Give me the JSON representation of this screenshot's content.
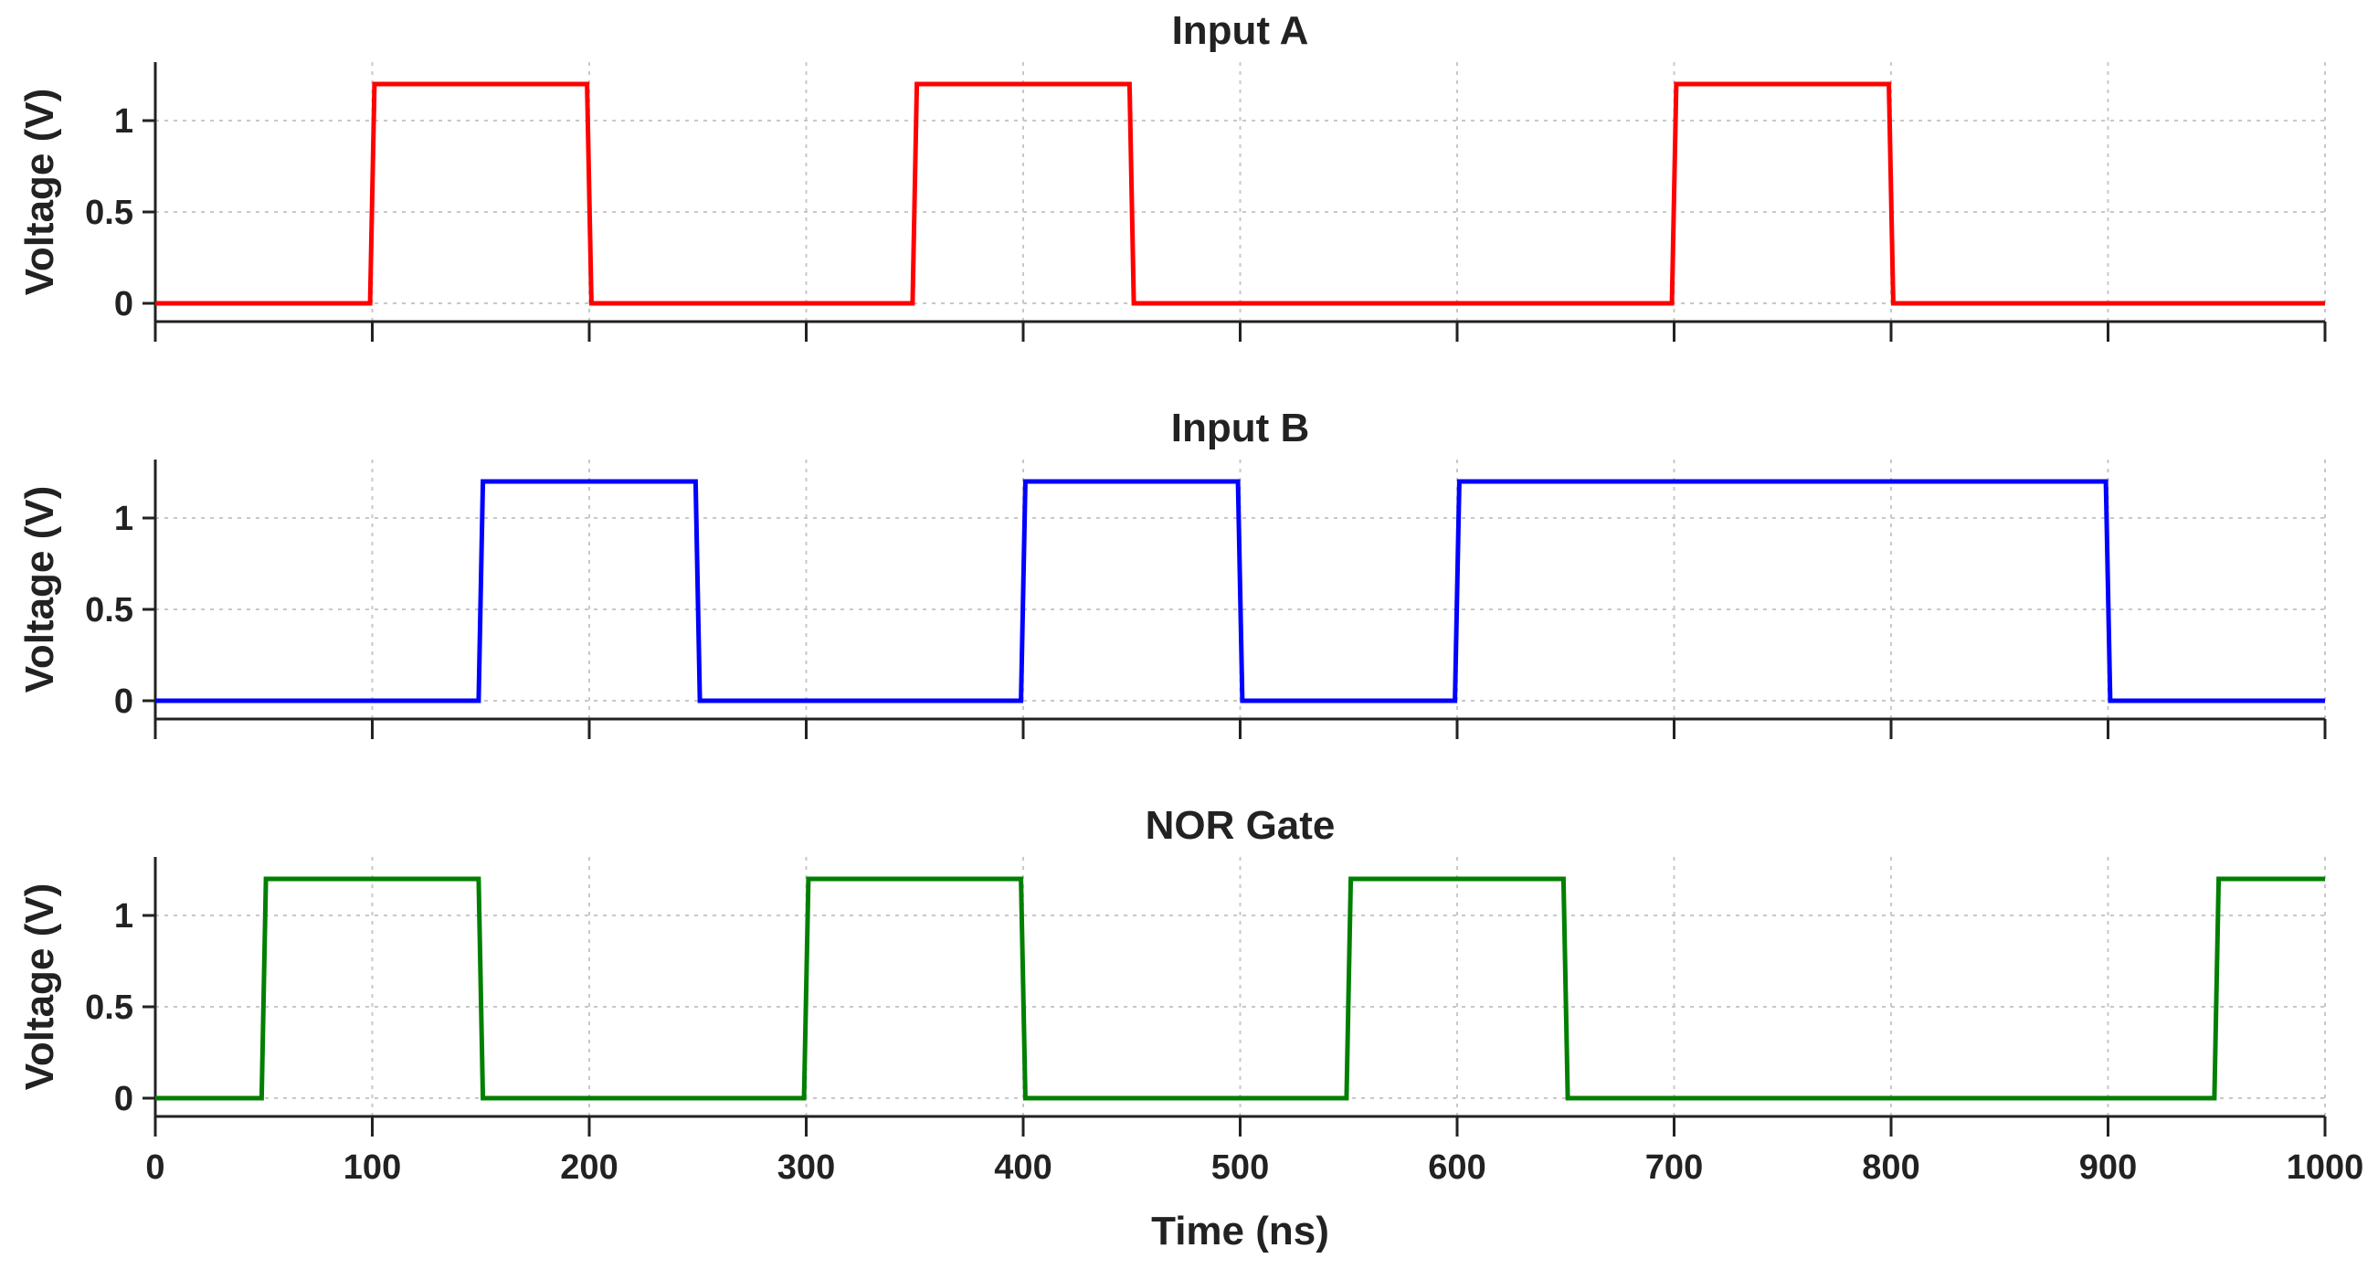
{
  "chart_data": [
    {
      "type": "line",
      "title": "Input A",
      "xlabel": "",
      "ylabel": "Voltage (V)",
      "xlim": [
        0,
        1000
      ],
      "ylim": [
        -0.1,
        1.32
      ],
      "xticks": [
        0,
        100,
        200,
        300,
        400,
        500,
        600,
        700,
        800,
        900,
        1000
      ],
      "yticks": [
        0,
        0.5,
        1
      ],
      "ytick_labels": [
        "0",
        "0.5",
        "1"
      ],
      "show_xtick_labels": false,
      "grid": true,
      "series": [
        {
          "name": "Input A",
          "color": "#ff0000",
          "x": [
            0,
            99,
            101,
            199,
            201,
            349,
            351,
            449,
            451,
            699,
            701,
            799,
            801,
            1000
          ],
          "y": [
            0,
            0,
            1.2,
            1.2,
            0,
            0,
            1.2,
            1.2,
            0,
            0,
            1.2,
            1.2,
            0,
            0
          ]
        }
      ]
    },
    {
      "type": "line",
      "title": "Input B",
      "xlabel": "",
      "ylabel": "Voltage (V)",
      "xlim": [
        0,
        1000
      ],
      "ylim": [
        -0.1,
        1.32
      ],
      "xticks": [
        0,
        100,
        200,
        300,
        400,
        500,
        600,
        700,
        800,
        900,
        1000
      ],
      "yticks": [
        0,
        0.5,
        1
      ],
      "ytick_labels": [
        "0",
        "0.5",
        "1"
      ],
      "show_xtick_labels": false,
      "grid": true,
      "series": [
        {
          "name": "Input B",
          "color": "#0000ff",
          "x": [
            0,
            149,
            151,
            249,
            251,
            399,
            401,
            499,
            501,
            599,
            601,
            899,
            901,
            1000
          ],
          "y": [
            0,
            0,
            1.2,
            1.2,
            0,
            0,
            1.2,
            1.2,
            0,
            0,
            1.2,
            1.2,
            0,
            0
          ]
        }
      ]
    },
    {
      "type": "line",
      "title": "NOR Gate",
      "xlabel": "Time (ns)",
      "ylabel": "Voltage (V)",
      "xlim": [
        0,
        1000
      ],
      "ylim": [
        -0.1,
        1.32
      ],
      "xticks": [
        0,
        100,
        200,
        300,
        400,
        500,
        600,
        700,
        800,
        900,
        1000
      ],
      "xtick_labels": [
        "0",
        "100",
        "200",
        "300",
        "400",
        "500",
        "600",
        "700",
        "800",
        "900",
        "1000"
      ],
      "yticks": [
        0,
        0.5,
        1
      ],
      "ytick_labels": [
        "0",
        "0.5",
        "1"
      ],
      "show_xtick_labels": true,
      "grid": true,
      "series": [
        {
          "name": "NOR Gate",
          "color": "#007f00",
          "x": [
            0,
            49,
            51,
            149,
            151,
            299,
            301,
            399,
            401,
            549,
            551,
            649,
            651,
            949,
            951,
            1000
          ],
          "y": [
            0,
            0,
            1.2,
            1.2,
            0,
            0,
            1.2,
            1.2,
            0,
            0,
            1.2,
            1.2,
            0,
            0,
            1.2,
            1.2
          ]
        }
      ]
    }
  ]
}
